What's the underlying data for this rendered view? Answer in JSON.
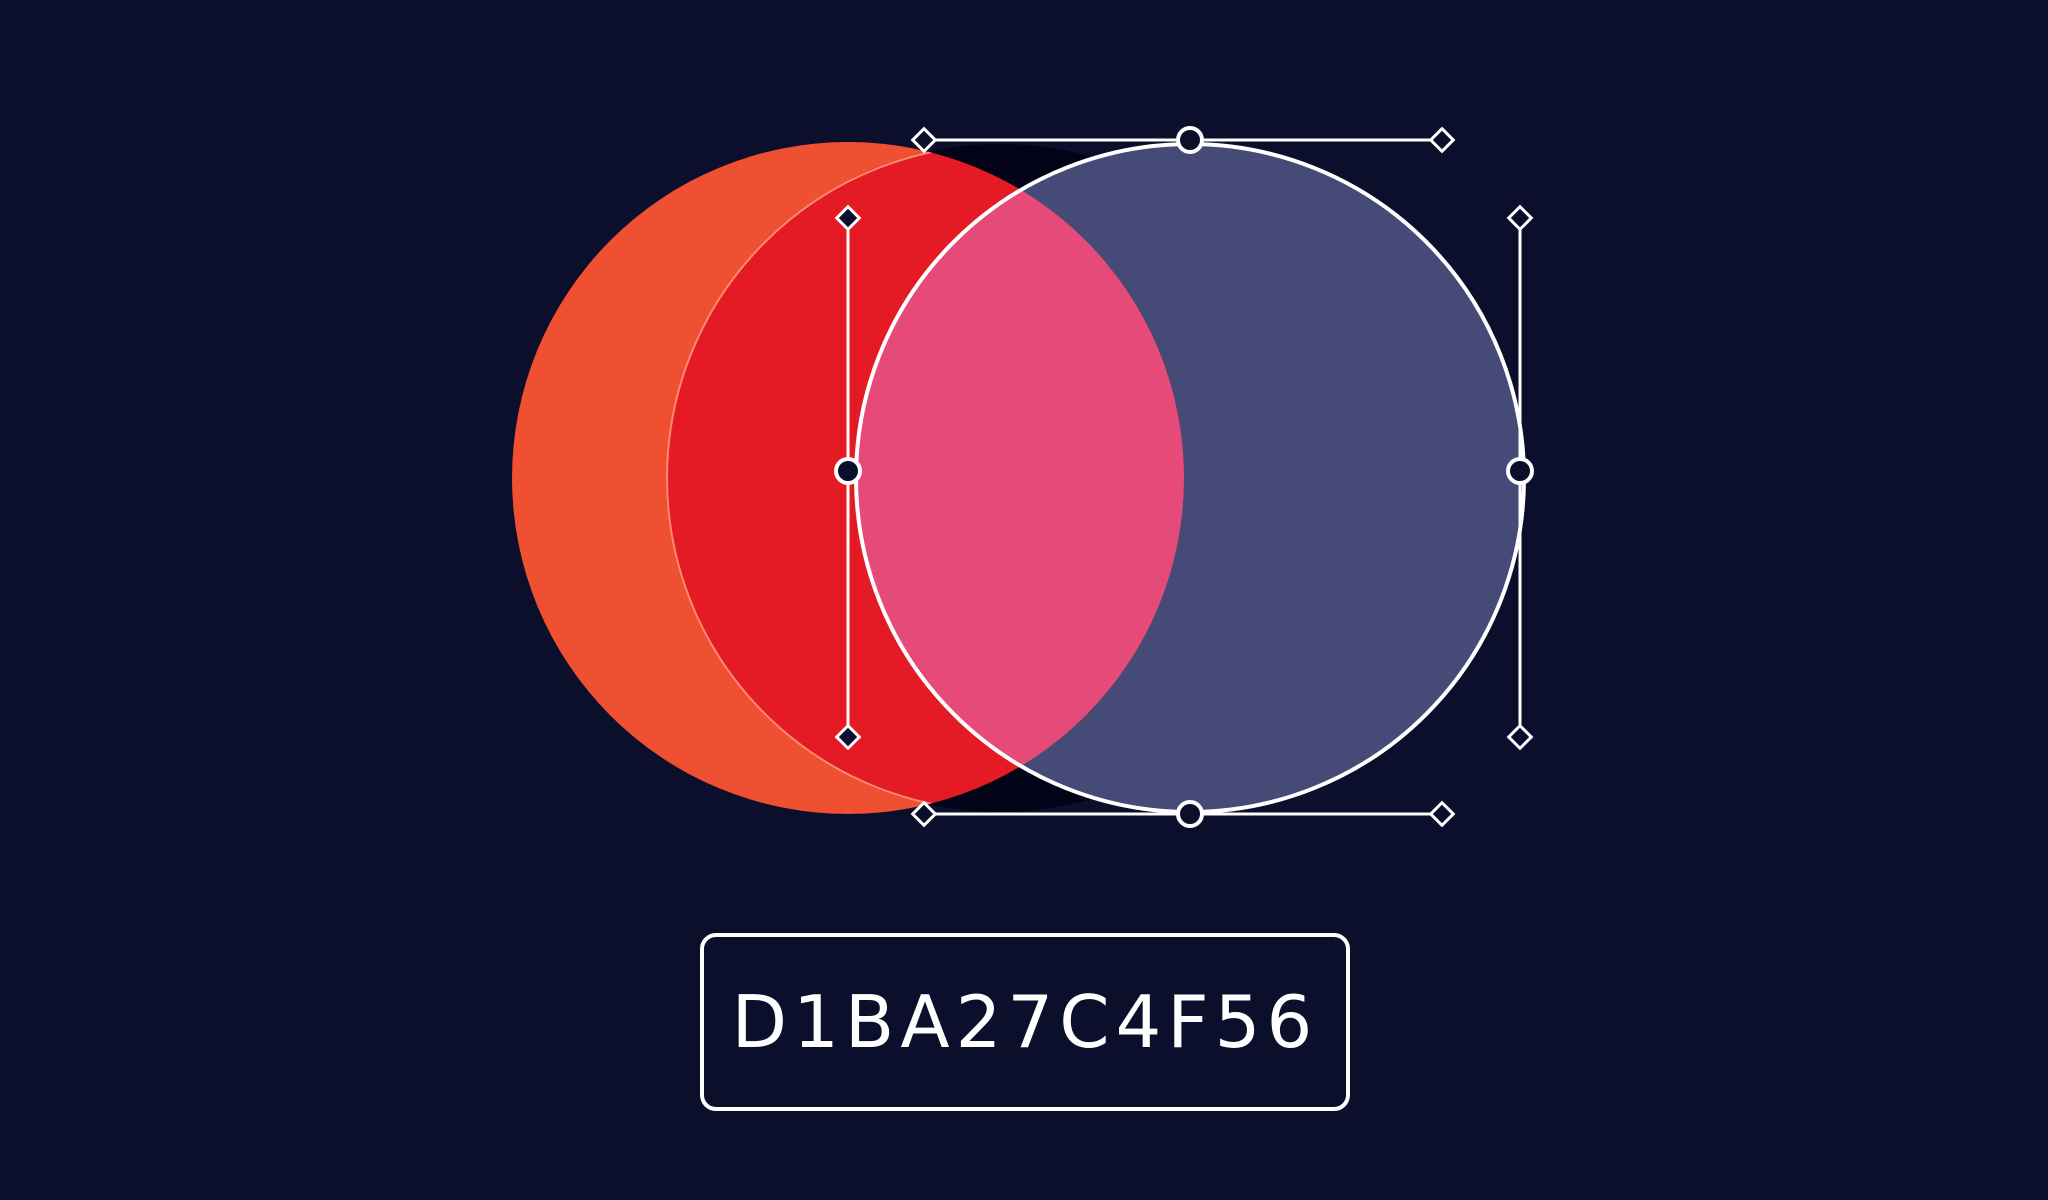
{
  "colors": {
    "background": "#0b0f2b",
    "left_circle": "#f05032",
    "left_overlap": "#e41a24",
    "center_overlap": "#e64a78",
    "right_circle": "#454a76",
    "outline": "#ffffff",
    "handle_fill": "#0b0f2b",
    "lens_top": "#020316"
  },
  "icons": {
    "anchor": "circle-anchor-icon",
    "control": "diamond-handle-icon"
  },
  "code_label": {
    "text": "D1BA27C4F56"
  }
}
